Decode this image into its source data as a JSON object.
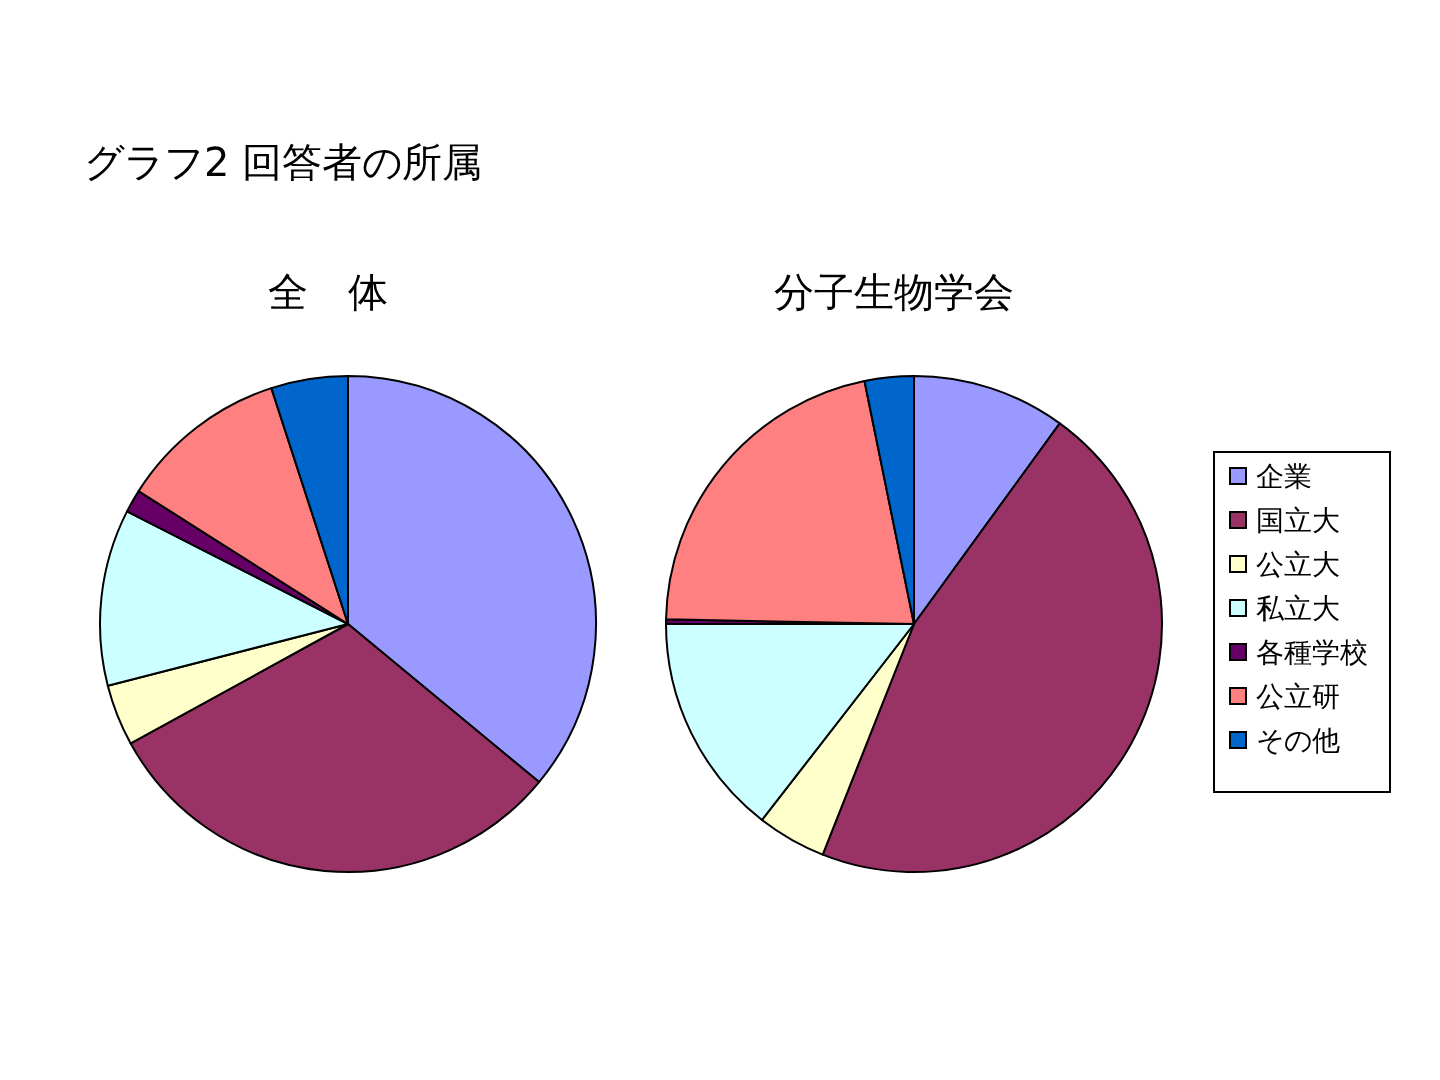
{
  "chart_data": {
    "type": "pie",
    "title": "グラフ2  回答者の所属",
    "legend": "right",
    "categories": [
      "企業",
      "国立大",
      "公立大",
      "私立大",
      "各種学校",
      "公立研",
      "その他"
    ],
    "colors": [
      "#9999ff",
      "#993366",
      "#ffffcc",
      "#ccffff",
      "#660066",
      "#ff8080",
      "#0066cc"
    ],
    "series": [
      {
        "name": "全　体",
        "values": [
          36,
          31,
          4,
          11.5,
          1.5,
          11,
          5
        ]
      },
      {
        "name": "分子生物学会",
        "values": [
          10,
          46,
          4.5,
          14.5,
          0.3,
          21.5,
          3.2
        ]
      }
    ]
  }
}
